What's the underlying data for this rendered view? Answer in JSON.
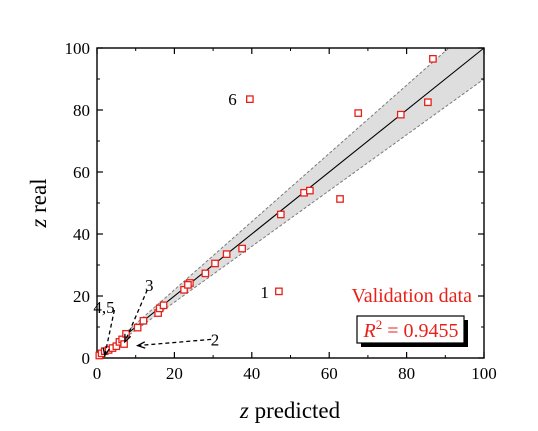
{
  "chart_data": {
    "type": "scatter",
    "xlabel_var": "z",
    "xlabel_rest": " predicted",
    "ylabel_var": "z",
    "ylabel_rest": " real",
    "xlim": [
      0,
      100
    ],
    "ylim": [
      0,
      100
    ],
    "xticks": [
      0,
      20,
      40,
      60,
      80,
      100
    ],
    "yticks": [
      0,
      20,
      40,
      60,
      80,
      100
    ],
    "grid": false,
    "band_slopes": [
      0.9,
      1.1
    ],
    "fit_slope": 1.0,
    "series": [
      {
        "name": "Validation data",
        "color": "#e8201a",
        "marker": "open-square",
        "points": [
          [
            0.6,
            0.8
          ],
          [
            1.2,
            1.5
          ],
          [
            2.0,
            2.2
          ],
          [
            3.0,
            2.6
          ],
          [
            4.0,
            3.2
          ],
          [
            5.0,
            3.8
          ],
          [
            5.8,
            5.2
          ],
          [
            6.5,
            6.0
          ],
          [
            7.0,
            4.5
          ],
          [
            7.5,
            7.8
          ],
          [
            10.5,
            9.8
          ],
          [
            12.0,
            12.0
          ],
          [
            15.8,
            14.5
          ],
          [
            16.2,
            16.0
          ],
          [
            17.2,
            17.0
          ],
          [
            22.5,
            22.0
          ],
          [
            24.0,
            24.2
          ],
          [
            23.5,
            23.6
          ],
          [
            28.0,
            27.3
          ],
          [
            30.5,
            30.5
          ],
          [
            33.5,
            33.5
          ],
          [
            37.5,
            35.3
          ],
          [
            39.5,
            83.5
          ],
          [
            47.0,
            21.5
          ],
          [
            47.5,
            46.3
          ],
          [
            53.5,
            53.3
          ],
          [
            55.0,
            54.0
          ],
          [
            62.8,
            51.3
          ],
          [
            67.5,
            79.0
          ],
          [
            78.5,
            78.5
          ],
          [
            85.5,
            82.5
          ],
          [
            86.8,
            96.5
          ]
        ]
      }
    ],
    "annotations": [
      {
        "text": "6",
        "x": 35.0,
        "y": 83.5
      },
      {
        "text": "1",
        "x": 43.3,
        "y": 21.3
      },
      {
        "text": "3",
        "x": 13.5,
        "y": 23.5
      },
      {
        "text": "4,5",
        "x": 1.8,
        "y": 16.5
      },
      {
        "text": "2",
        "x": 30.5,
        "y": 6.0
      }
    ],
    "arrows": [
      {
        "from": [
          13.0,
          22.0
        ],
        "to": [
          7.2,
          5.2
        ]
      },
      {
        "from": [
          4.5,
          15.5
        ],
        "to": [
          2.0,
          0.8
        ]
      },
      {
        "from": [
          29.5,
          6.0
        ],
        "to": [
          10.5,
          4.0
        ]
      }
    ],
    "legend": {
      "label": "Validation data",
      "position": "bottom-right"
    },
    "stat": {
      "prefix": "R",
      "sup": "2",
      "value": " = 0.9455"
    },
    "colors": {
      "points": "#e8201a",
      "band": "#dedede",
      "line": "#000000"
    }
  }
}
